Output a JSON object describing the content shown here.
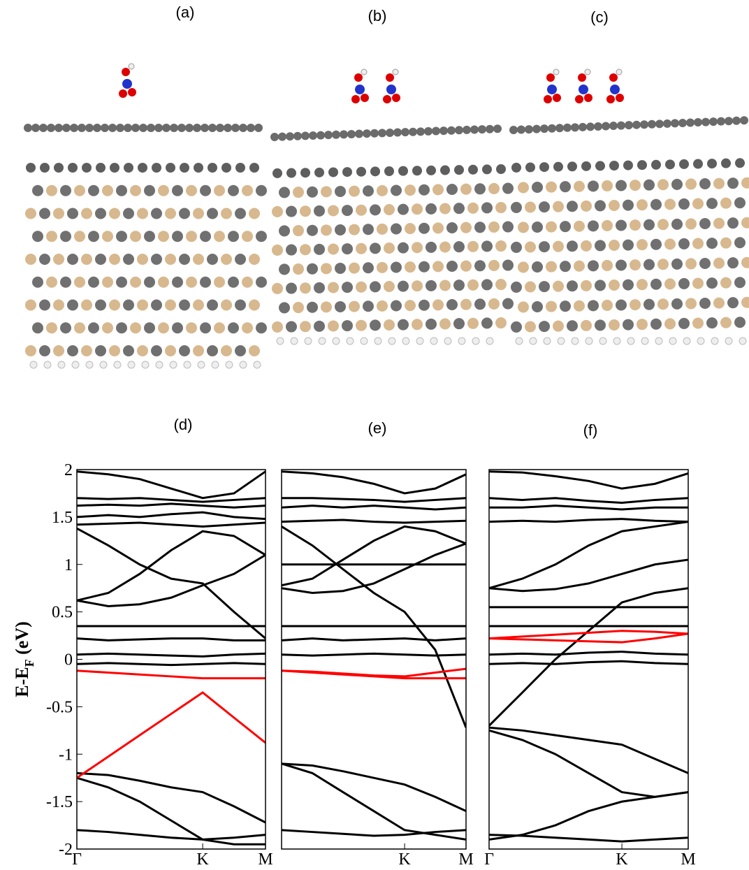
{
  "structures": [
    {
      "label": "(a)",
      "molecules": 1
    },
    {
      "label": "(b)",
      "molecules": 2
    },
    {
      "label": "(c)",
      "molecules": 3
    }
  ],
  "chart_data": [
    {
      "type": "line",
      "title": "(d)",
      "ylabel": "E-E",
      "ylabel_sub": "F",
      "ylabel_unit": " (eV)",
      "x": [
        0,
        0.167,
        0.333,
        0.5,
        0.667,
        0.833,
        1
      ],
      "xlim": [
        0,
        1
      ],
      "xticks": [
        {
          "value": 0,
          "label": "Γ"
        },
        {
          "value": 0.667,
          "label": "K"
        },
        {
          "value": 1,
          "label": "M"
        }
      ],
      "ylim": [
        -2,
        2
      ],
      "yticks": [
        2,
        1.5,
        1,
        0.5,
        0,
        -0.5,
        -1,
        -1.5,
        -2
      ],
      "series": [
        {
          "color": "#000000",
          "values": [
            1.98,
            1.95,
            1.9,
            1.8,
            1.7,
            1.75,
            1.98
          ]
        },
        {
          "color": "#000000",
          "values": [
            1.7,
            1.69,
            1.7,
            1.68,
            1.66,
            1.68,
            1.7
          ]
        },
        {
          "color": "#000000",
          "values": [
            1.62,
            1.63,
            1.62,
            1.64,
            1.62,
            1.6,
            1.62
          ]
        },
        {
          "color": "#000000",
          "values": [
            1.5,
            1.52,
            1.5,
            1.53,
            1.55,
            1.5,
            1.48
          ]
        },
        {
          "color": "#000000",
          "values": [
            1.42,
            1.43,
            1.44,
            1.42,
            1.4,
            1.42,
            1.44
          ]
        },
        {
          "color": "#000000",
          "values": [
            0.62,
            0.7,
            0.9,
            1.15,
            1.35,
            1.3,
            1.1
          ]
        },
        {
          "color": "#000000",
          "values": [
            0.62,
            0.56,
            0.58,
            0.65,
            0.78,
            0.9,
            1.1
          ]
        },
        {
          "color": "#000000",
          "values": [
            1.38,
            1.2,
            1.0,
            0.85,
            0.8,
            0.5,
            0.22
          ]
        },
        {
          "color": "#000000",
          "values": [
            0.35,
            0.35,
            0.35,
            0.35,
            0.35,
            0.35,
            0.35
          ]
        },
        {
          "color": "#000000",
          "values": [
            0.22,
            0.2,
            0.21,
            0.22,
            0.22,
            0.2,
            0.2
          ]
        },
        {
          "color": "#000000",
          "values": [
            0.05,
            0.06,
            0.05,
            0.04,
            0.03,
            0.05,
            0.06
          ]
        },
        {
          "color": "#000000",
          "values": [
            -0.05,
            -0.04,
            -0.05,
            -0.06,
            -0.05,
            -0.04,
            -0.05
          ]
        },
        {
          "color": "#000000",
          "values": [
            -1.2,
            -1.22,
            -1.28,
            -1.35,
            -1.4,
            -1.55,
            -1.72
          ]
        },
        {
          "color": "#000000",
          "values": [
            -1.25,
            -1.35,
            -1.5,
            -1.7,
            -1.9,
            -1.95,
            -1.95
          ]
        },
        {
          "color": "#000000",
          "values": [
            -1.8,
            -1.82,
            -1.85,
            -1.88,
            -1.9,
            -1.88,
            -1.85
          ]
        },
        {
          "color": "#ff0000",
          "values": [
            -1.25,
            -1.025,
            -0.8,
            -0.575,
            -0.35,
            -0.615,
            -0.88
          ]
        },
        {
          "color": "#ff0000",
          "values": [
            -0.12,
            -0.14,
            -0.16,
            -0.18,
            -0.2,
            -0.2,
            -0.2
          ]
        }
      ]
    },
    {
      "type": "line",
      "title": "(e)",
      "x": [
        0,
        0.167,
        0.333,
        0.5,
        0.667,
        0.833,
        1
      ],
      "xlim": [
        0,
        1
      ],
      "xticks": [
        {
          "value": 0.667,
          "label": "K"
        },
        {
          "value": 1,
          "label": "M"
        }
      ],
      "ylim": [
        -2,
        2
      ],
      "series": [
        {
          "color": "#000000",
          "values": [
            1.98,
            1.96,
            1.92,
            1.85,
            1.75,
            1.8,
            1.95
          ]
        },
        {
          "color": "#000000",
          "values": [
            1.7,
            1.7,
            1.69,
            1.68,
            1.66,
            1.68,
            1.7
          ]
        },
        {
          "color": "#000000",
          "values": [
            1.6,
            1.62,
            1.6,
            1.62,
            1.6,
            1.58,
            1.6
          ]
        },
        {
          "color": "#000000",
          "values": [
            1.45,
            1.46,
            1.47,
            1.45,
            1.44,
            1.45,
            1.46
          ]
        },
        {
          "color": "#000000",
          "values": [
            1.0,
            1.0,
            1.0,
            1.0,
            1.0,
            1.0,
            1.0
          ]
        },
        {
          "color": "#000000",
          "values": [
            0.78,
            0.85,
            1.05,
            1.25,
            1.4,
            1.35,
            1.22
          ]
        },
        {
          "color": "#000000",
          "values": [
            0.75,
            0.7,
            0.72,
            0.8,
            0.95,
            1.1,
            1.22
          ]
        },
        {
          "color": "#000000",
          "values": [
            1.4,
            1.2,
            0.95,
            0.7,
            0.5,
            0.1,
            -0.72
          ]
        },
        {
          "color": "#000000",
          "values": [
            0.35,
            0.35,
            0.35,
            0.35,
            0.35,
            0.35,
            0.35
          ]
        },
        {
          "color": "#000000",
          "values": [
            0.2,
            0.22,
            0.2,
            0.21,
            0.22,
            0.2,
            0.22
          ]
        },
        {
          "color": "#000000",
          "values": [
            0.05,
            0.04,
            0.05,
            0.06,
            0.05,
            0.04,
            0.05
          ]
        },
        {
          "color": "#000000",
          "values": [
            -1.1,
            -1.12,
            -1.18,
            -1.25,
            -1.32,
            -1.45,
            -1.6
          ]
        },
        {
          "color": "#000000",
          "values": [
            -1.1,
            -1.2,
            -1.4,
            -1.6,
            -1.8,
            -1.85,
            -1.9
          ]
        },
        {
          "color": "#000000",
          "values": [
            -1.8,
            -1.82,
            -1.84,
            -1.86,
            -1.85,
            -1.82,
            -1.8
          ]
        },
        {
          "color": "#ff0000",
          "values": [
            -0.12,
            -0.13,
            -0.15,
            -0.17,
            -0.18,
            -0.14,
            -0.1
          ]
        },
        {
          "color": "#ff0000",
          "values": [
            -0.12,
            -0.14,
            -0.16,
            -0.18,
            -0.2,
            -0.2,
            -0.2
          ]
        }
      ]
    },
    {
      "type": "line",
      "title": "(f)",
      "x": [
        0,
        0.167,
        0.333,
        0.5,
        0.667,
        0.833,
        1
      ],
      "xlim": [
        0,
        1
      ],
      "xticks": [
        {
          "value": 0,
          "label": "Γ"
        },
        {
          "value": 0.667,
          "label": "K"
        },
        {
          "value": 1,
          "label": "M"
        }
      ],
      "ylim": [
        -2,
        2
      ],
      "series": [
        {
          "color": "#000000",
          "values": [
            1.98,
            1.97,
            1.93,
            1.88,
            1.8,
            1.85,
            1.96
          ]
        },
        {
          "color": "#000000",
          "values": [
            1.7,
            1.68,
            1.7,
            1.67,
            1.65,
            1.68,
            1.7
          ]
        },
        {
          "color": "#000000",
          "values": [
            1.6,
            1.6,
            1.62,
            1.6,
            1.58,
            1.6,
            1.6
          ]
        },
        {
          "color": "#000000",
          "values": [
            1.45,
            1.46,
            1.45,
            1.47,
            1.48,
            1.46,
            1.45
          ]
        },
        {
          "color": "#000000",
          "values": [
            0.75,
            0.85,
            1.0,
            1.2,
            1.35,
            1.4,
            1.45
          ]
        },
        {
          "color": "#000000",
          "values": [
            0.75,
            0.72,
            0.74,
            0.8,
            0.9,
            1.0,
            1.05
          ]
        },
        {
          "color": "#000000",
          "values": [
            0.55,
            0.55,
            0.55,
            0.55,
            0.55,
            0.55,
            0.55
          ]
        },
        {
          "color": "#000000",
          "values": [
            0.35,
            0.35,
            0.35,
            0.35,
            0.35,
            0.35,
            0.35
          ]
        },
        {
          "color": "#000000",
          "values": [
            -0.7,
            -0.35,
            0.0,
            0.3,
            0.6,
            0.7,
            0.75
          ]
        },
        {
          "color": "#000000",
          "values": [
            0.05,
            0.06,
            0.05,
            0.07,
            0.08,
            0.06,
            0.05
          ]
        },
        {
          "color": "#000000",
          "values": [
            -0.05,
            -0.04,
            -0.05,
            -0.03,
            -0.02,
            -0.04,
            -0.05
          ]
        },
        {
          "color": "#000000",
          "values": [
            -0.72,
            -0.75,
            -0.8,
            -0.85,
            -0.9,
            -1.05,
            -1.2
          ]
        },
        {
          "color": "#000000",
          "values": [
            -0.75,
            -0.85,
            -1.0,
            -1.2,
            -1.4,
            -1.45,
            -1.4
          ]
        },
        {
          "color": "#000000",
          "values": [
            -1.9,
            -1.85,
            -1.75,
            -1.6,
            -1.5,
            -1.45,
            -1.4
          ]
        },
        {
          "color": "#000000",
          "values": [
            -1.85,
            -1.86,
            -1.88,
            -1.9,
            -1.92,
            -1.9,
            -1.88
          ]
        },
        {
          "color": "#ff0000",
          "values": [
            0.22,
            0.24,
            0.26,
            0.28,
            0.3,
            0.29,
            0.27
          ]
        },
        {
          "color": "#ff0000",
          "values": [
            0.22,
            0.21,
            0.2,
            0.19,
            0.18,
            0.22,
            0.27
          ]
        }
      ]
    }
  ]
}
